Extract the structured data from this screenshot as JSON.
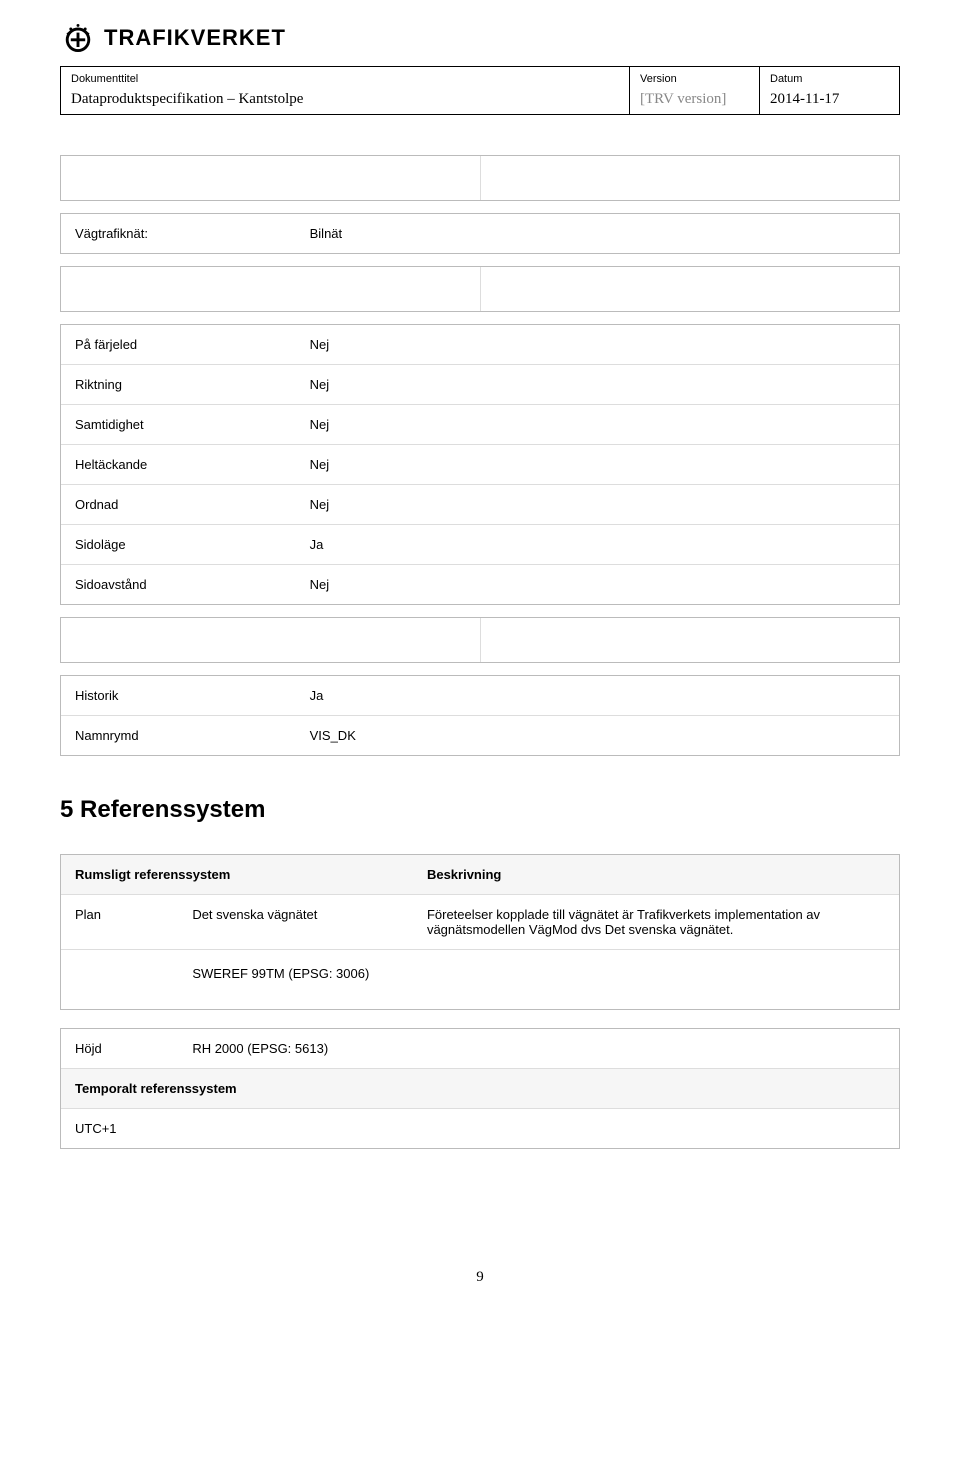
{
  "logo": {
    "org_name": "TRAFIKVERKET"
  },
  "header": {
    "label_title": "Dokumenttitel",
    "title": "Dataproduktspecifikation – Kantstolpe",
    "label_version": "Version",
    "version_text": "[TRV version]",
    "label_date": "Datum",
    "date": "2014-11-17"
  },
  "table1": [
    {
      "key": "Vägtrafiknät:",
      "val": "Bilnät"
    }
  ],
  "table2": [
    {
      "key": "På färjeled",
      "val": "Nej"
    },
    {
      "key": "Riktning",
      "val": "Nej"
    },
    {
      "key": "Samtidighet",
      "val": "Nej"
    },
    {
      "key": "Heltäckande",
      "val": "Nej"
    },
    {
      "key": "Ordnad",
      "val": "Nej"
    },
    {
      "key": "Sidoläge",
      "val": "Ja"
    },
    {
      "key": "Sidoavstånd",
      "val": "Nej"
    }
  ],
  "table3": [
    {
      "key": "Historik",
      "val": "Ja"
    },
    {
      "key": "Namnrymd",
      "val": "VIS_DK"
    }
  ],
  "section_heading": "5   Referenssystem",
  "ref1": {
    "header": {
      "col1": "Rumsligt referenssystem",
      "col2": "Beskrivning"
    },
    "rows": [
      {
        "c1": "Plan",
        "c2": "Det svenska vägnätet",
        "c3": "Företeelser kopplade till vägnätet är Trafikverkets implementation av vägnätsmodellen VägMod dvs Det svenska vägnätet."
      },
      {
        "c1": "",
        "c2": "SWEREF 99TM (EPSG: 3006)",
        "c3": ""
      }
    ]
  },
  "ref2": {
    "rows": [
      {
        "c1": "Höjd",
        "c2": "RH 2000 (EPSG: 5613)",
        "c3": "",
        "bold": false
      },
      {
        "c1": "Temporalt referenssystem",
        "c2": "",
        "c3": "",
        "bold": true,
        "span": true
      },
      {
        "c1": "UTC+1",
        "c2": "",
        "c3": "",
        "bold": false,
        "span": true
      }
    ]
  },
  "page_number": "9",
  "colors": {
    "border_outer": "#bbbbbb",
    "border_inner": "#dddddd",
    "header_bg": "#f6f6f6",
    "text": "#000000",
    "muted": "#888888"
  }
}
